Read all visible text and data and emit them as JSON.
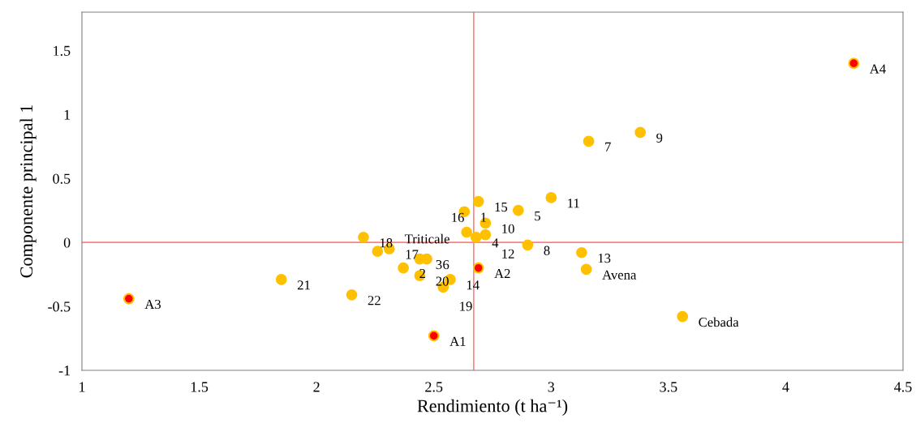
{
  "chart_data": {
    "type": "scatter",
    "xlabel": "Rendimiento (t ha⁻¹)",
    "ylabel": "Componente principal 1",
    "xlim": [
      1,
      4.5
    ],
    "xticks": [
      1,
      1.5,
      2,
      2.5,
      3,
      3.5,
      4,
      4.5
    ],
    "ylim": [
      -1,
      1.8
    ],
    "yticks": [
      -1,
      -0.5,
      0,
      0.5,
      1,
      1.5
    ],
    "grid": false,
    "legend": false,
    "marker": "circle",
    "ref_lines": [
      {
        "axis": "x",
        "value": 2.67,
        "color": "#ff8080"
      },
      {
        "axis": "y",
        "value": 0,
        "color": "#ff8080"
      }
    ],
    "series": [
      {
        "color": "#ffc000",
        "x": [
          2.63,
          2.37,
          2.44,
          2.68,
          2.86,
          2.47,
          3.16,
          2.9,
          3.38,
          2.72,
          3.0,
          2.72,
          3.13,
          2.57,
          2.69,
          2.64,
          2.31,
          2.2,
          2.54,
          2.44,
          1.85,
          2.15,
          2.26,
          3.15,
          3.56
        ],
        "values": [
          0.24,
          -0.2,
          -0.13,
          0.04,
          0.25,
          -0.13,
          0.79,
          -0.02,
          0.86,
          0.15,
          0.35,
          0.06,
          -0.08,
          -0.29,
          0.32,
          0.08,
          -0.05,
          0.04,
          -0.35,
          -0.26,
          -0.29,
          -0.41,
          -0.07,
          -0.21,
          -0.58
        ]
      },
      {
        "color": "#ff0000",
        "x": [
          2.5,
          2.69,
          1.2,
          4.29
        ],
        "values": [
          -0.73,
          -0.2,
          -0.44,
          1.4
        ]
      }
    ],
    "annotations": [
      {
        "text": "1",
        "x": 2.63,
        "y": 0.24
      },
      {
        "text": "2",
        "x": 2.37,
        "y": -0.2
      },
      {
        "text": "3",
        "x": 2.44,
        "y": -0.13
      },
      {
        "text": "4",
        "x": 2.68,
        "y": 0.04
      },
      {
        "text": "5",
        "x": 2.86,
        "y": 0.25
      },
      {
        "text": "6",
        "x": 2.47,
        "y": -0.13
      },
      {
        "text": "7",
        "x": 3.16,
        "y": 0.79
      },
      {
        "text": "8",
        "x": 2.9,
        "y": -0.02
      },
      {
        "text": "9",
        "x": 3.38,
        "y": 0.86
      },
      {
        "text": "10",
        "x": 2.72,
        "y": 0.15
      },
      {
        "text": "11",
        "x": 3.0,
        "y": 0.35
      },
      {
        "text": "12",
        "x": 2.72,
        "y": 0.06
      },
      {
        "text": "13",
        "x": 3.13,
        "y": -0.08
      },
      {
        "text": "14",
        "x": 2.57,
        "y": -0.29
      },
      {
        "text": "15",
        "x": 2.69,
        "y": 0.32
      },
      {
        "text": "16",
        "x": 2.64,
        "y": 0.08
      },
      {
        "text": "17",
        "x": 2.31,
        "y": -0.05
      },
      {
        "text": "18",
        "x": 2.2,
        "y": 0.04
      },
      {
        "text": "19",
        "x": 2.54,
        "y": -0.35
      },
      {
        "text": "20",
        "x": 2.44,
        "y": -0.26
      },
      {
        "text": "21",
        "x": 1.85,
        "y": -0.29
      },
      {
        "text": "22",
        "x": 2.15,
        "y": -0.41
      },
      {
        "text": "Triticale",
        "x": 2.26,
        "y": -0.07
      },
      {
        "text": "Avena",
        "x": 3.15,
        "y": -0.21
      },
      {
        "text": "Cebada",
        "x": 3.56,
        "y": -0.58
      },
      {
        "text": "A1",
        "x": 2.5,
        "y": -0.73
      },
      {
        "text": "A2",
        "x": 2.69,
        "y": -0.2
      },
      {
        "text": "A3",
        "x": 1.2,
        "y": -0.44
      },
      {
        "text": "A4",
        "x": 4.29,
        "y": 1.4
      }
    ]
  }
}
